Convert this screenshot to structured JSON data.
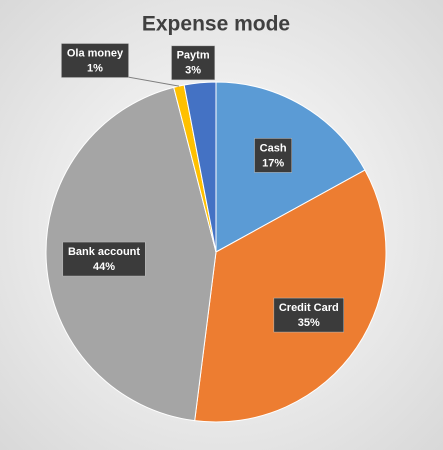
{
  "chart_data": {
    "type": "pie",
    "title": "Expense mode",
    "categories": [
      "Cash",
      "Credit Card",
      "Bank account",
      "Ola money",
      "Paytm"
    ],
    "values": [
      17,
      35,
      44,
      1,
      3
    ],
    "value_labels": [
      "17%",
      "35%",
      "44%",
      "1%",
      "3%"
    ],
    "colors": [
      "#5b9bd5",
      "#ed7d31",
      "#a5a5a5",
      "#ffc000",
      "#4472c4"
    ]
  }
}
